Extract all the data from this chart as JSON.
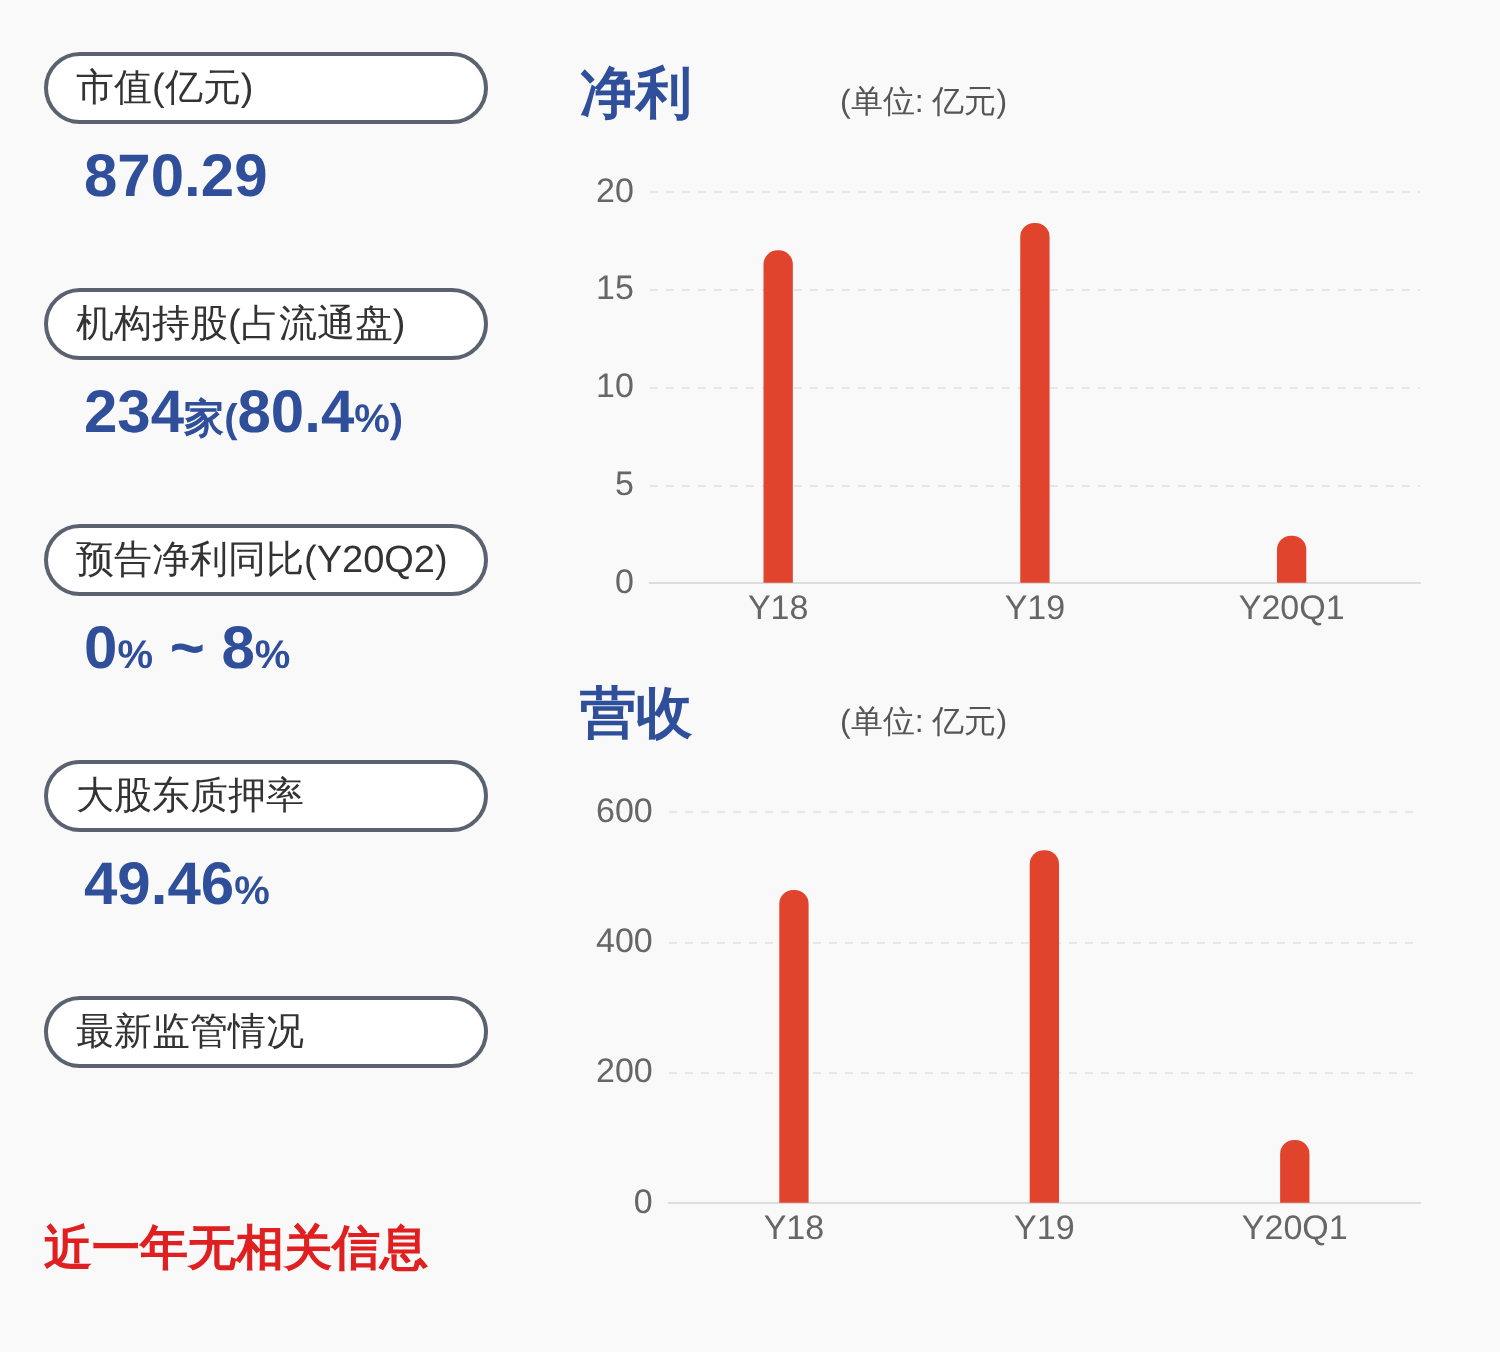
{
  "chart_data": [
    {
      "type": "other",
      "annotations": [
        "市值(亿元)",
        "870.29",
        "机构持股(占流通盘)",
        "234家(80.4%)",
        "预告净利同比(Y20Q2)",
        "0% ~ 8%",
        "大股东质押率",
        "49.46%",
        "最新监管情况",
        "近一年无相关信息"
      ]
    },
    {
      "type": "bar",
      "title": "净利",
      "subtitle": "(单位: 亿元)",
      "categories": [
        "Y18",
        "Y19",
        "Y20Q1"
      ],
      "values": [
        17.0,
        18.4,
        2.4
      ],
      "color": "#e0442c",
      "ylim": [
        0,
        20
      ],
      "yticks": [
        0,
        5,
        10,
        15,
        20
      ],
      "grid": "y"
    },
    {
      "type": "bar",
      "title": "营收",
      "subtitle": "(单位: 亿元)",
      "categories": [
        "Y18",
        "Y19",
        "Y20Q1"
      ],
      "values": [
        480,
        541,
        96
      ],
      "color": "#e0442c",
      "ylim": [
        0,
        600
      ],
      "yticks": [
        0,
        200,
        400,
        600
      ],
      "grid": "y"
    }
  ]
}
